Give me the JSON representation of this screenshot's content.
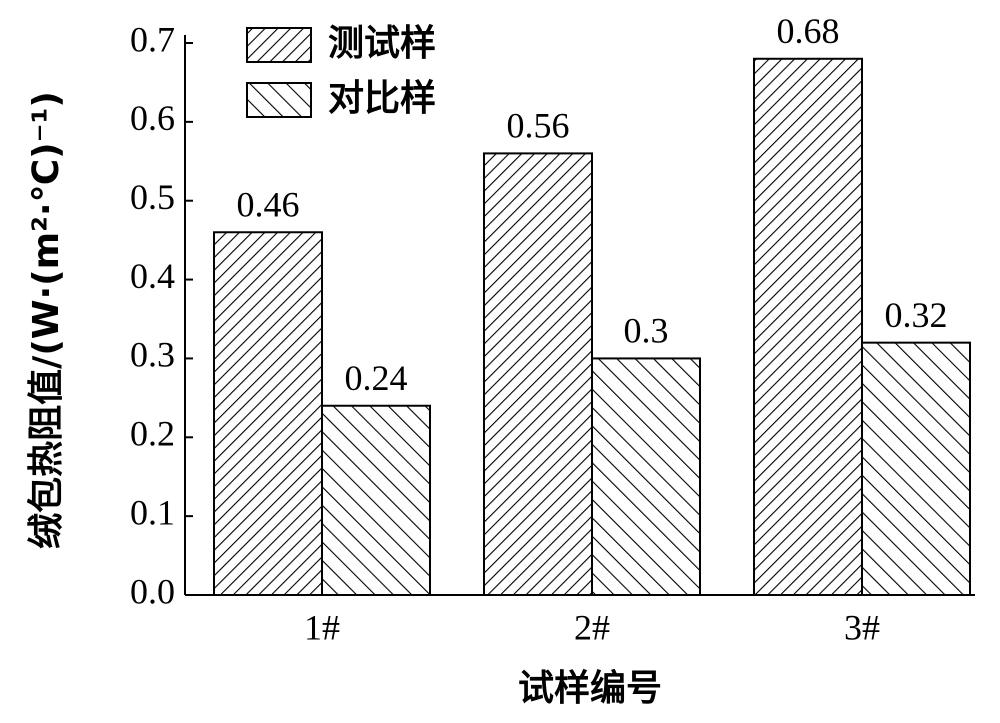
{
  "chart_data": {
    "type": "bar",
    "y_label": "绒包热阻值/(W·(m²·℃)⁻¹)",
    "x_label": "试样编号",
    "categories": [
      "1#",
      "2#",
      "3#"
    ],
    "series": [
      {
        "name": "测试样",
        "color": "#000000",
        "hatch": "\\",
        "values": [
          0.46,
          0.56,
          0.68
        ]
      },
      {
        "name": "对比样",
        "color": "#000000",
        "hatch": "/",
        "values": [
          0.24,
          0.3,
          0.32
        ]
      }
    ],
    "ylim": [
      0,
      0.7
    ],
    "yticks": [
      {
        "value": 0,
        "label": "0.0"
      },
      0.1,
      0.2,
      0.3,
      0.4,
      0.5,
      0.6,
      0.7
    ],
    "grid": false,
    "legend": "upper left"
  }
}
